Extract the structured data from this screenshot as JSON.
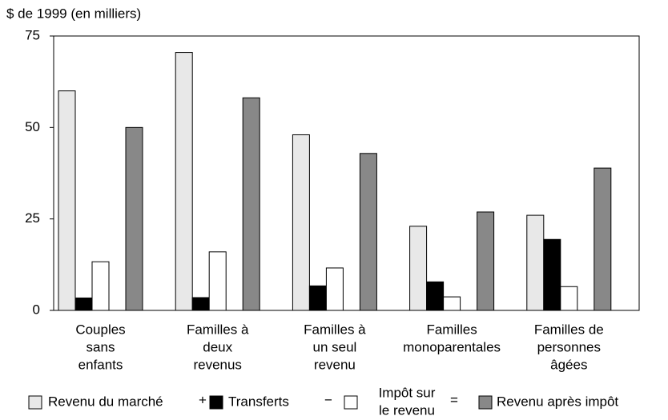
{
  "chart_data": {
    "type": "bar",
    "y_label": "$ de 1999 (en milliers)",
    "categories": [
      [
        "Couples",
        "sans",
        "enfants"
      ],
      [
        "Familles à",
        "deux",
        "revenus"
      ],
      [
        "Familles à",
        "un seul",
        "revenu"
      ],
      [
        "Familles",
        "monoparentales"
      ],
      [
        "Familles de",
        "personnes",
        "âgées"
      ]
    ],
    "series": [
      {
        "name": [
          "Revenu du marché"
        ],
        "color": "#e8e8e8",
        "values": [
          60,
          70.5,
          48,
          23,
          26
        ]
      },
      {
        "name": [
          "Transferts"
        ],
        "color": "#000000",
        "values": [
          3.4,
          3.5,
          6.7,
          7.8,
          19.4
        ]
      },
      {
        "name": [
          "Impôt sur",
          "le revenu"
        ],
        "color": "#ffffff",
        "values": [
          13.3,
          16,
          11.6,
          3.7,
          6.5
        ]
      },
      {
        "name": [
          "Revenu après impôt"
        ],
        "color": "#888888",
        "values": [
          50,
          58.1,
          42.9,
          26.9,
          38.9
        ]
      }
    ],
    "legend_operators": [
      "+",
      "−",
      "="
    ],
    "ylim": [
      0,
      75
    ],
    "yticks": [
      0,
      25,
      50,
      75
    ],
    "grid": false
  }
}
